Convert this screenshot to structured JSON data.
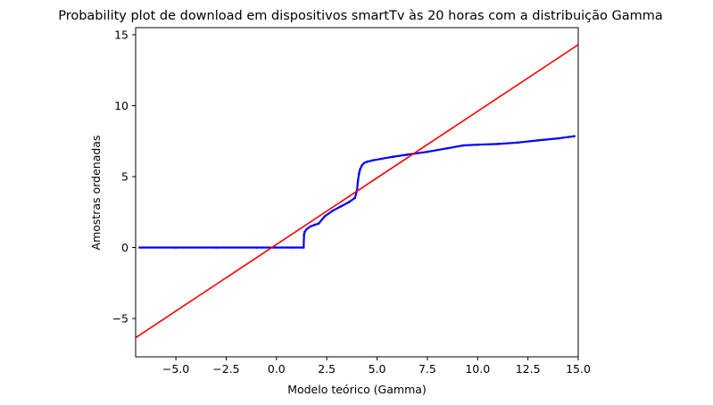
{
  "chart_data": {
    "type": "scatter",
    "title": "Probability plot de download em dispositivos smartTv às 20 horas com a distribuição Gamma",
    "xlabel": "Modelo teórico (Gamma)",
    "ylabel": "Amostras ordenadas",
    "xlim": [
      -7.0,
      15.0
    ],
    "ylim": [
      -7.7,
      15.5
    ],
    "xticks": [
      -5.0,
      -2.5,
      0.0,
      2.5,
      5.0,
      7.5,
      10.0,
      12.5,
      15.0
    ],
    "xtick_labels": [
      "−5.0",
      "−2.5",
      "0.0",
      "2.5",
      "5.0",
      "7.5",
      "10.0",
      "12.5",
      "15.0"
    ],
    "yticks": [
      -5,
      0,
      5,
      10,
      15
    ],
    "ytick_labels": [
      "−5",
      "0",
      "5",
      "10",
      "15"
    ],
    "grid": false,
    "legend": "none",
    "series": [
      {
        "kind": "points",
        "color": "#0000ff",
        "x": [
          -6.8,
          -5,
          -3,
          -1,
          0,
          0.8,
          1.35,
          1.37,
          1.4,
          1.5,
          1.7,
          1.9,
          2.1,
          2.4,
          2.8,
          3.2,
          3.6,
          3.9,
          4.0,
          4.05,
          4.1,
          4.15,
          4.25,
          4.35,
          4.5,
          4.8,
          5.2,
          5.8,
          6.5,
          7.5,
          8.5,
          9.3,
          10.0,
          11.0,
          12.0,
          13.0,
          14.0,
          14.8
        ],
        "y": [
          0,
          0,
          0,
          0,
          0,
          0,
          0,
          0.9,
          1.1,
          1.3,
          1.5,
          1.6,
          1.7,
          2.2,
          2.6,
          2.9,
          3.2,
          3.5,
          4.0,
          4.7,
          5.2,
          5.5,
          5.8,
          5.95,
          6.05,
          6.15,
          6.25,
          6.4,
          6.55,
          6.75,
          7.0,
          7.2,
          7.25,
          7.3,
          7.4,
          7.55,
          7.7,
          7.85
        ]
      },
      {
        "kind": "line",
        "color": "#ff0000",
        "x": [
          -7.0,
          15.0
        ],
        "y": [
          -6.35,
          14.3
        ]
      }
    ]
  }
}
